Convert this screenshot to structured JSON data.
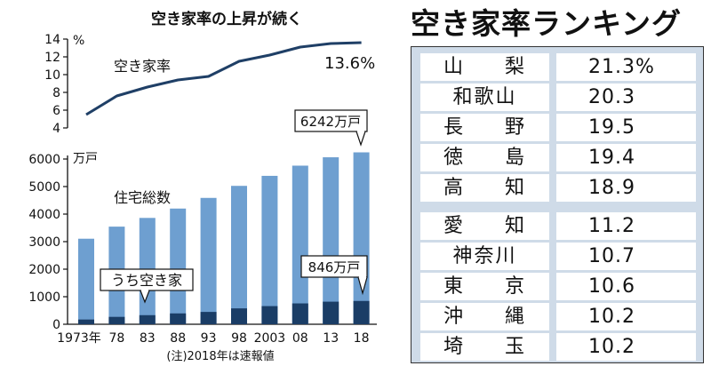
{
  "chart_data": [
    {
      "type": "line",
      "title": "空き家率の上昇が続く",
      "series_label": "空き家率",
      "y_unit": "%",
      "ylim": [
        4,
        14
      ],
      "yticks": [
        4,
        6,
        8,
        10,
        12,
        14
      ],
      "x": [
        1973,
        1978,
        1983,
        1988,
        1993,
        1998,
        2003,
        2008,
        2013,
        2018
      ],
      "values": [
        5.5,
        7.6,
        8.6,
        9.4,
        9.8,
        11.5,
        12.2,
        13.1,
        13.5,
        13.6
      ],
      "end_label": "13.6%",
      "color": "#1f3f66"
    },
    {
      "type": "bar",
      "y_unit": "万戸",
      "ylim": [
        0,
        6000
      ],
      "yticks": [
        0,
        1000,
        2000,
        3000,
        4000,
        5000,
        6000
      ],
      "categories": [
        "1973年",
        "78",
        "83",
        "88",
        "93",
        "98",
        "2003",
        "08",
        "13",
        "18"
      ],
      "series": [
        {
          "name": "住宅総数",
          "values": [
            3106,
            3545,
            3861,
            4201,
            4588,
            5025,
            5389,
            5759,
            6063,
            6242
          ],
          "color": "#6e9fd0"
        },
        {
          "name": "うち空き家",
          "values": [
            172,
            268,
            330,
            394,
            448,
            576,
            659,
            757,
            820,
            846
          ],
          "color": "#1a3d66"
        }
      ],
      "callouts": {
        "total_last": "6242万戸",
        "vacant_last": "846万戸"
      },
      "note": "(注)2018年は速報値"
    }
  ],
  "ranking": {
    "title": "空き家率ランキング",
    "top": [
      {
        "name": "山梨",
        "value": "21.3%"
      },
      {
        "name": "和歌山",
        "value": "20.3"
      },
      {
        "name": "長野",
        "value": "19.5"
      },
      {
        "name": "徳島",
        "value": "19.4"
      },
      {
        "name": "高知",
        "value": "18.9"
      }
    ],
    "bottom": [
      {
        "name": "愛知",
        "value": "11.2"
      },
      {
        "name": "神奈川",
        "value": "10.7"
      },
      {
        "name": "東京",
        "value": "10.6"
      },
      {
        "name": "沖縄",
        "value": "10.2"
      },
      {
        "name": "埼玉",
        "value": "10.2"
      }
    ]
  }
}
